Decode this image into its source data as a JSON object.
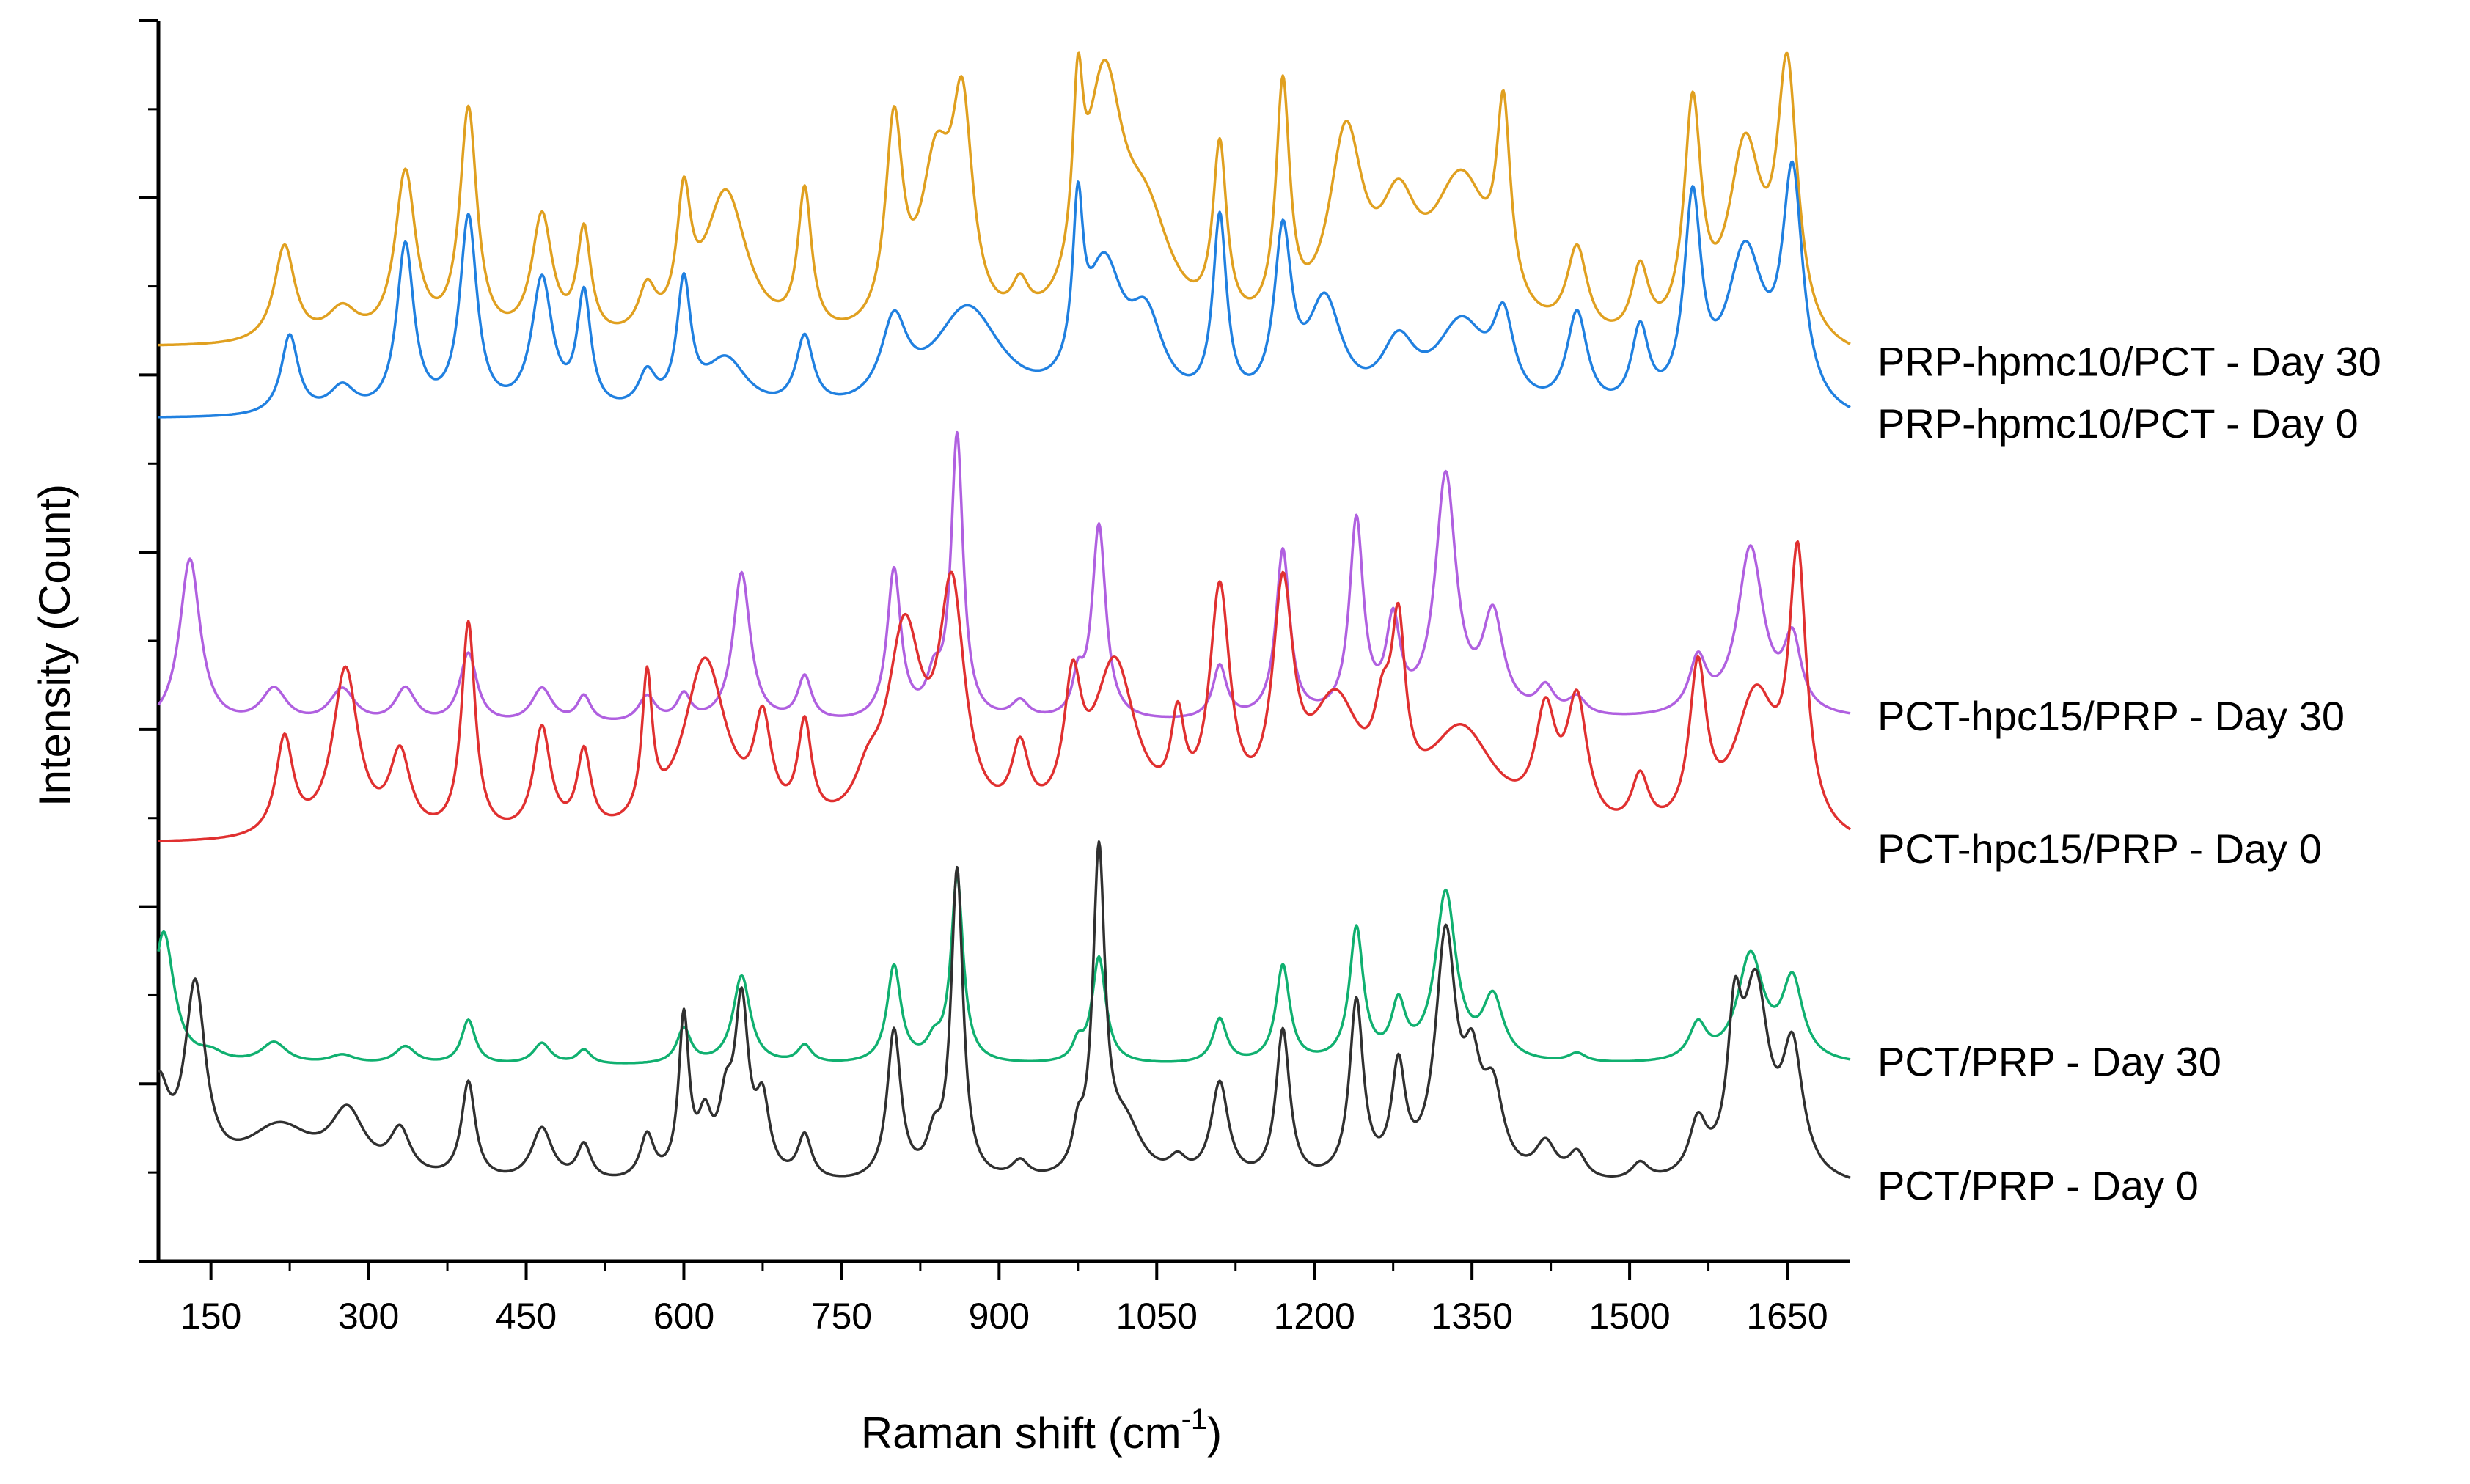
{
  "chart_data": {
    "type": "line",
    "title": "",
    "xlabel": "Raman shift (cm",
    "xlabel_sup": "-1",
    "xlabel_close": ")",
    "ylabel": "Intensity (Count)",
    "xlim": [
      100,
      1710
    ],
    "ylim": [
      0,
      7.0
    ],
    "y_ticks_labeled": false,
    "x_ticks": [
      150,
      300,
      450,
      600,
      750,
      900,
      1050,
      1200,
      1350,
      1500,
      1650
    ],
    "x_tick_labels": [
      "150",
      "300",
      "450",
      "600",
      "750",
      "900",
      "1050",
      "1200",
      "1350",
      "1500",
      "1650"
    ],
    "grid": false,
    "legend": "right-side labels next to each trace",
    "series": [
      {
        "name": "PRP-hpmc10/PCT - Day 30",
        "color": "#E0A020",
        "baseline": 5.15,
        "end_level": 5.05,
        "peaks": [
          [
            220,
            0.55,
            12
          ],
          [
            275,
            0.18,
            18
          ],
          [
            335,
            0.95,
            12
          ],
          [
            395,
            1.3,
            10
          ],
          [
            465,
            0.7,
            12
          ],
          [
            505,
            0.6,
            8
          ],
          [
            565,
            0.25,
            10
          ],
          [
            600,
            0.7,
            8
          ],
          [
            640,
            0.85,
            25
          ],
          [
            715,
            0.8,
            8
          ],
          [
            800,
            1.15,
            10
          ],
          [
            840,
            0.9,
            18
          ],
          [
            865,
            1.15,
            12
          ],
          [
            920,
            0.2,
            10
          ],
          [
            975,
            0.95,
            6
          ],
          [
            1000,
            1.35,
            22
          ],
          [
            1040,
            0.6,
            30
          ],
          [
            1110,
            1.0,
            8
          ],
          [
            1170,
            1.35,
            8
          ],
          [
            1230,
            1.1,
            20
          ],
          [
            1280,
            0.6,
            22
          ],
          [
            1340,
            0.9,
            35
          ],
          [
            1380,
            1.05,
            8
          ],
          [
            1450,
            0.5,
            12
          ],
          [
            1510,
            0.4,
            10
          ],
          [
            1560,
            1.3,
            10
          ],
          [
            1610,
            1.1,
            20
          ],
          [
            1650,
            1.5,
            12
          ]
        ]
      },
      {
        "name": "PRP-hpmc10/PCT - Day 0",
        "color": "#2080E0",
        "baseline": 4.75,
        "end_level": 4.7,
        "peaks": [
          [
            225,
            0.45,
            10
          ],
          [
            275,
            0.15,
            15
          ],
          [
            335,
            0.95,
            10
          ],
          [
            395,
            1.1,
            10
          ],
          [
            465,
            0.75,
            12
          ],
          [
            505,
            0.65,
            8
          ],
          [
            565,
            0.2,
            10
          ],
          [
            600,
            0.7,
            8
          ],
          [
            640,
            0.3,
            25
          ],
          [
            715,
            0.4,
            10
          ],
          [
            800,
            0.45,
            15
          ],
          [
            870,
            0.6,
            40
          ],
          [
            975,
            0.9,
            6
          ],
          [
            1000,
            0.75,
            22
          ],
          [
            1040,
            0.45,
            20
          ],
          [
            1110,
            1.05,
            8
          ],
          [
            1170,
            0.95,
            10
          ],
          [
            1210,
            0.6,
            20
          ],
          [
            1280,
            0.35,
            20
          ],
          [
            1340,
            0.5,
            30
          ],
          [
            1380,
            0.45,
            12
          ],
          [
            1450,
            0.55,
            12
          ],
          [
            1510,
            0.45,
            10
          ],
          [
            1560,
            1.15,
            10
          ],
          [
            1610,
            0.9,
            22
          ],
          [
            1655,
            1.3,
            12
          ]
        ]
      },
      {
        "name": "PCT-hpc15/PRP - Day 30",
        "color": "#B060E0",
        "baseline": 3.0,
        "end_level": 3.05,
        "peaks": [
          [
            130,
            0.95,
            12
          ],
          [
            210,
            0.2,
            15
          ],
          [
            275,
            0.2,
            15
          ],
          [
            335,
            0.2,
            12
          ],
          [
            395,
            0.4,
            10
          ],
          [
            465,
            0.2,
            12
          ],
          [
            505,
            0.15,
            8
          ],
          [
            565,
            0.15,
            10
          ],
          [
            600,
            0.15,
            8
          ],
          [
            655,
            0.85,
            10
          ],
          [
            715,
            0.25,
            8
          ],
          [
            800,
            0.85,
            8
          ],
          [
            838,
            0.2,
            8
          ],
          [
            860,
            1.6,
            7
          ],
          [
            920,
            0.1,
            10
          ],
          [
            975,
            0.2,
            6
          ],
          [
            995,
            1.1,
            8
          ],
          [
            1110,
            0.3,
            8
          ],
          [
            1170,
            0.95,
            8
          ],
          [
            1240,
            1.1,
            8
          ],
          [
            1275,
            0.5,
            8
          ],
          [
            1325,
            1.35,
            12
          ],
          [
            1370,
            0.55,
            12
          ],
          [
            1420,
            0.15,
            10
          ],
          [
            1450,
            0.1,
            10
          ],
          [
            1565,
            0.3,
            10
          ],
          [
            1615,
            0.95,
            15
          ],
          [
            1655,
            0.4,
            10
          ]
        ]
      },
      {
        "name": "PCT-hpc15/PRP - Day 0",
        "color": "#E03030",
        "baseline": 2.35,
        "end_level": 2.3,
        "peaks": [
          [
            220,
            0.55,
            10
          ],
          [
            278,
            0.95,
            15
          ],
          [
            330,
            0.45,
            12
          ],
          [
            395,
            1.2,
            8
          ],
          [
            465,
            0.6,
            10
          ],
          [
            505,
            0.45,
            8
          ],
          [
            565,
            0.8,
            6
          ],
          [
            620,
            1.0,
            25
          ],
          [
            675,
            0.55,
            10
          ],
          [
            715,
            0.55,
            8
          ],
          [
            775,
            0.2,
            15
          ],
          [
            810,
            1.1,
            20
          ],
          [
            855,
            1.3,
            15
          ],
          [
            920,
            0.4,
            10
          ],
          [
            970,
            0.7,
            10
          ],
          [
            1010,
            0.95,
            25
          ],
          [
            1070,
            0.5,
            8
          ],
          [
            1110,
            1.3,
            12
          ],
          [
            1170,
            1.25,
            12
          ],
          [
            1220,
            0.7,
            30
          ],
          [
            1265,
            0.4,
            10
          ],
          [
            1280,
            0.9,
            8
          ],
          [
            1340,
            0.6,
            40
          ],
          [
            1420,
            0.6,
            12
          ],
          [
            1450,
            0.7,
            12
          ],
          [
            1510,
            0.3,
            10
          ],
          [
            1565,
            0.9,
            10
          ],
          [
            1620,
            0.8,
            25
          ],
          [
            1660,
            1.5,
            10
          ]
        ]
      },
      {
        "name": "PCT/PRP - Day 30",
        "color": "#10B070",
        "baseline": 1.1,
        "end_level": 1.1,
        "peaks": [
          [
            105,
            0.75,
            12
          ],
          [
            150,
            0.05,
            15
          ],
          [
            210,
            0.12,
            15
          ],
          [
            275,
            0.05,
            15
          ],
          [
            335,
            0.1,
            12
          ],
          [
            395,
            0.25,
            8
          ],
          [
            465,
            0.12,
            10
          ],
          [
            505,
            0.08,
            8
          ],
          [
            600,
            0.2,
            8
          ],
          [
            655,
            0.5,
            10
          ],
          [
            715,
            0.1,
            8
          ],
          [
            800,
            0.55,
            8
          ],
          [
            838,
            0.1,
            8
          ],
          [
            860,
            1.05,
            7
          ],
          [
            975,
            0.1,
            6
          ],
          [
            995,
            0.6,
            8
          ],
          [
            1110,
            0.25,
            8
          ],
          [
            1170,
            0.55,
            8
          ],
          [
            1240,
            0.75,
            8
          ],
          [
            1280,
            0.3,
            8
          ],
          [
            1325,
            0.95,
            12
          ],
          [
            1370,
            0.35,
            12
          ],
          [
            1450,
            0.05,
            10
          ],
          [
            1565,
            0.2,
            10
          ],
          [
            1615,
            0.6,
            15
          ],
          [
            1655,
            0.45,
            12
          ]
        ]
      },
      {
        "name": "PCT/PRP - Day 0",
        "color": "#303030",
        "baseline": 0.42,
        "end_level": 0.4,
        "peaks": [
          [
            100,
            0.5,
            12
          ],
          [
            135,
            1.05,
            12
          ],
          [
            215,
            0.3,
            40
          ],
          [
            280,
            0.35,
            20
          ],
          [
            330,
            0.25,
            12
          ],
          [
            395,
            0.55,
            8
          ],
          [
            465,
            0.3,
            12
          ],
          [
            505,
            0.2,
            8
          ],
          [
            565,
            0.25,
            8
          ],
          [
            600,
            0.9,
            6
          ],
          [
            620,
            0.3,
            8
          ],
          [
            640,
            0.35,
            8
          ],
          [
            655,
            0.95,
            8
          ],
          [
            675,
            0.4,
            8
          ],
          [
            715,
            0.25,
            8
          ],
          [
            800,
            0.85,
            8
          ],
          [
            838,
            0.2,
            8
          ],
          [
            860,
            1.75,
            7
          ],
          [
            920,
            0.1,
            10
          ],
          [
            975,
            0.2,
            6
          ],
          [
            995,
            1.8,
            7
          ],
          [
            1020,
            0.3,
            20
          ],
          [
            1070,
            0.1,
            10
          ],
          [
            1110,
            0.55,
            10
          ],
          [
            1170,
            0.85,
            8
          ],
          [
            1240,
            1.0,
            8
          ],
          [
            1280,
            0.6,
            8
          ],
          [
            1325,
            1.35,
            12
          ],
          [
            1350,
            0.5,
            10
          ],
          [
            1370,
            0.45,
            12
          ],
          [
            1420,
            0.2,
            12
          ],
          [
            1450,
            0.15,
            10
          ],
          [
            1510,
            0.1,
            10
          ],
          [
            1565,
            0.3,
            10
          ],
          [
            1600,
            0.75,
            8
          ],
          [
            1620,
            1.05,
            15
          ],
          [
            1655,
            0.7,
            12
          ]
        ]
      }
    ]
  }
}
